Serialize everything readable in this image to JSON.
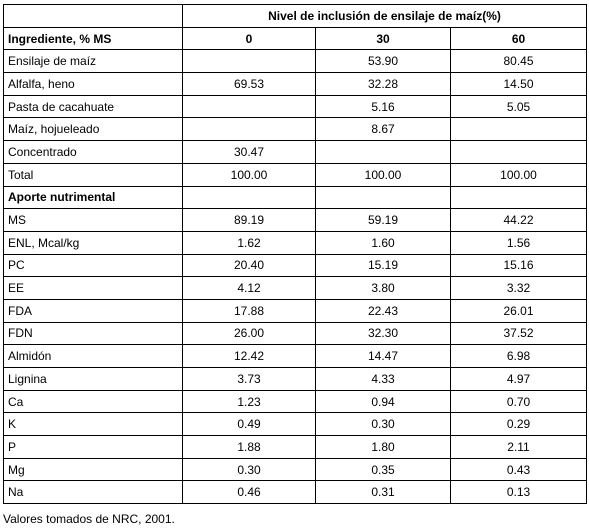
{
  "table": {
    "group_header": "Nivel de inclusión de ensilaje de maíz(%)",
    "col_header_label": "Ingrediente, % MS",
    "levels": [
      "0",
      "30",
      "60"
    ],
    "ingredients": [
      {
        "label": "Ensilaje de maíz",
        "values": [
          "",
          "53.90",
          "80.45"
        ]
      },
      {
        "label": "Alfalfa, heno",
        "values": [
          "69.53",
          "32.28",
          "14.50"
        ]
      },
      {
        "label": "Pasta de cacahuate",
        "values": [
          "",
          "5.16",
          "5.05"
        ]
      },
      {
        "label": "Maíz, hojueleado",
        "values": [
          "",
          "8.67",
          ""
        ]
      },
      {
        "label": "Concentrado",
        "values": [
          "30.47",
          "",
          ""
        ]
      },
      {
        "label": "Total",
        "values": [
          "100.00",
          "100.00",
          "100.00"
        ]
      }
    ],
    "nutrient_section_label": "Aporte nutrimental",
    "nutrients": [
      {
        "label": "MS",
        "values": [
          "89.19",
          "59.19",
          "44.22"
        ]
      },
      {
        "label": "ENL, Mcal/kg",
        "values": [
          "1.62",
          "1.60",
          "1.56"
        ]
      },
      {
        "label": "PC",
        "values": [
          "20.40",
          "15.19",
          "15.16"
        ]
      },
      {
        "label": "EE",
        "values": [
          "4.12",
          "3.80",
          "3.32"
        ]
      },
      {
        "label": "FDA",
        "values": [
          "17.88",
          "22.43",
          "26.01"
        ]
      },
      {
        "label": "FDN",
        "values": [
          "26.00",
          "32.30",
          "37.52"
        ]
      },
      {
        "label": "Almidón",
        "values": [
          "12.42",
          "14.47",
          "6.98"
        ]
      },
      {
        "label": "Lignina",
        "values": [
          "3.73",
          "4.33",
          "4.97"
        ]
      },
      {
        "label": "Ca",
        "values": [
          "1.23",
          "0.94",
          "0.70"
        ]
      },
      {
        "label": "K",
        "values": [
          "0.49",
          "0.30",
          "0.29"
        ]
      },
      {
        "label": "P",
        "values": [
          "1.88",
          "1.80",
          "2.11"
        ]
      },
      {
        "label": "Mg",
        "values": [
          "0.30",
          "0.35",
          "0.43"
        ]
      },
      {
        "label": "Na",
        "values": [
          "0.46",
          "0.31",
          "0.13"
        ]
      }
    ]
  },
  "footnote": "Valores tomados de NRC, 2001."
}
